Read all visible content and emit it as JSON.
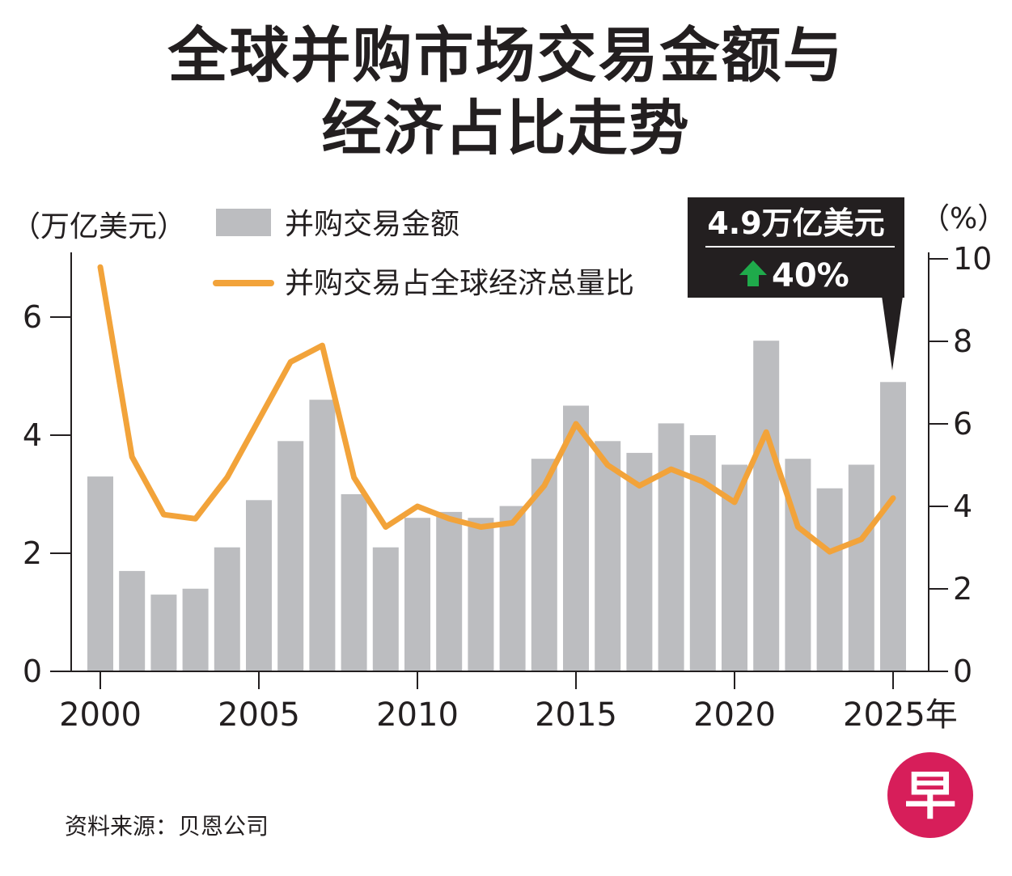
{
  "header": {
    "title_line1": "全球并购市场交易金额与",
    "title_line2": "经济占比走势"
  },
  "source": "资料来源：贝恩公司",
  "logo_char": "早",
  "colors": {
    "bar": "#bcbdc0",
    "line": "#f2a33a",
    "axis": "#231f20",
    "callout_bg": "#231f20",
    "arrow_up": "#1faa4b",
    "logo": "#d71e5a"
  },
  "chart_data": {
    "type": "bar",
    "x": [
      2000,
      2001,
      2002,
      2003,
      2004,
      2005,
      2006,
      2007,
      2008,
      2009,
      2010,
      2011,
      2012,
      2013,
      2014,
      2015,
      2016,
      2017,
      2018,
      2019,
      2020,
      2021,
      2022,
      2023,
      2024,
      2025
    ],
    "x_tick_labels": [
      "2000",
      "2005",
      "2010",
      "2015",
      "2020",
      "2025年"
    ],
    "x_ticks": [
      2000,
      2005,
      2010,
      2015,
      2020,
      2025
    ],
    "y_left_unit": "（万亿美元）",
    "y_right_unit": "（%）",
    "y_left_ticks": [
      "0",
      "2",
      "4",
      "6"
    ],
    "y_left_range": [
      0,
      7
    ],
    "y_right_ticks": [
      "0",
      "2",
      "4",
      "6",
      "8",
      "10"
    ],
    "y_right_range": [
      0,
      10
    ],
    "legend_position": "top-left",
    "series": [
      {
        "name": "并购交易金额",
        "type": "bar",
        "axis": "left",
        "values": [
          3.3,
          1.7,
          1.3,
          1.4,
          2.1,
          2.9,
          3.9,
          4.6,
          3.0,
          2.1,
          2.6,
          2.7,
          2.6,
          2.8,
          3.6,
          4.5,
          3.9,
          3.7,
          4.2,
          4.0,
          3.5,
          5.6,
          3.6,
          3.1,
          3.5,
          4.9
        ]
      },
      {
        "name": "并购交易占全球经济总量比",
        "type": "line",
        "axis": "right",
        "values": [
          9.8,
          5.2,
          3.8,
          3.7,
          4.7,
          6.1,
          7.5,
          7.9,
          4.7,
          3.5,
          4.0,
          3.7,
          3.5,
          3.6,
          4.5,
          6.0,
          5.0,
          4.5,
          4.9,
          4.6,
          4.1,
          5.8,
          3.5,
          2.9,
          3.2,
          4.2
        ]
      }
    ],
    "callout": {
      "value_label": "4.9万亿美元",
      "change_label": "40%",
      "target_x": 2025
    }
  }
}
